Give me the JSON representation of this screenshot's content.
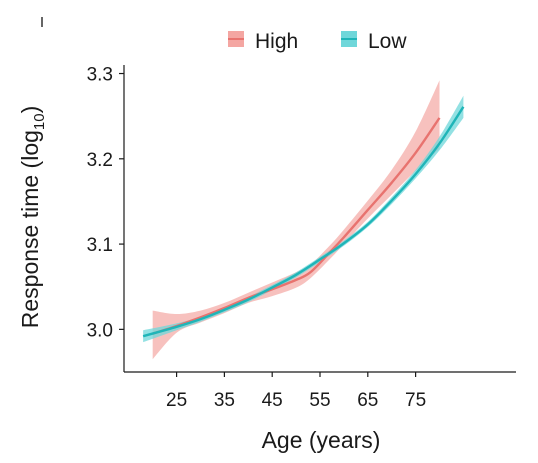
{
  "chart_data": {
    "type": "line",
    "xlabel": "Age (years)",
    "ylabel_main": "Response time (log",
    "ylabel_sub": "10",
    "ylabel_close": ")",
    "xlim": [
      14,
      96
    ],
    "ylim": [
      2.95,
      3.31
    ],
    "x_ticks": [
      25,
      35,
      45,
      55,
      65,
      75
    ],
    "y_ticks": [
      3.0,
      3.1,
      3.2,
      3.3
    ],
    "y_tick_labels": [
      "3.0",
      "3.1",
      "3.2",
      "3.3"
    ],
    "legend_position": "top",
    "series": [
      {
        "name": "High",
        "color": "#e8736f",
        "band_color": "#f4a6a2",
        "x": [
          20,
          25,
          30,
          35,
          40,
          45,
          50,
          53,
          57,
          60,
          65,
          70,
          75,
          80
        ],
        "y": [
          2.995,
          3.004,
          3.014,
          3.025,
          3.037,
          3.047,
          3.058,
          3.067,
          3.09,
          3.108,
          3.14,
          3.172,
          3.207,
          3.248
        ],
        "lower": [
          2.965,
          2.996,
          3.008,
          3.019,
          3.031,
          3.039,
          3.049,
          3.06,
          3.082,
          3.1,
          3.13,
          3.158,
          3.186,
          3.212
        ],
        "upper": [
          3.022,
          3.018,
          3.022,
          3.031,
          3.043,
          3.055,
          3.067,
          3.076,
          3.098,
          3.117,
          3.151,
          3.187,
          3.232,
          3.292
        ]
      },
      {
        "name": "Low",
        "color": "#1fb5b8",
        "band_color": "#6fd7da",
        "x": [
          18,
          25,
          30,
          35,
          40,
          45,
          50,
          55,
          60,
          65,
          70,
          75,
          80,
          85
        ],
        "y": [
          2.992,
          3.003,
          3.012,
          3.023,
          3.035,
          3.049,
          3.064,
          3.082,
          3.101,
          3.123,
          3.151,
          3.182,
          3.218,
          3.261
        ],
        "lower": [
          2.985,
          2.999,
          3.009,
          3.02,
          3.032,
          3.046,
          3.061,
          3.079,
          3.098,
          3.12,
          3.147,
          3.177,
          3.21,
          3.248
        ],
        "upper": [
          2.999,
          3.007,
          3.015,
          3.026,
          3.038,
          3.052,
          3.067,
          3.085,
          3.104,
          3.126,
          3.155,
          3.187,
          3.226,
          3.274
        ]
      }
    ]
  }
}
